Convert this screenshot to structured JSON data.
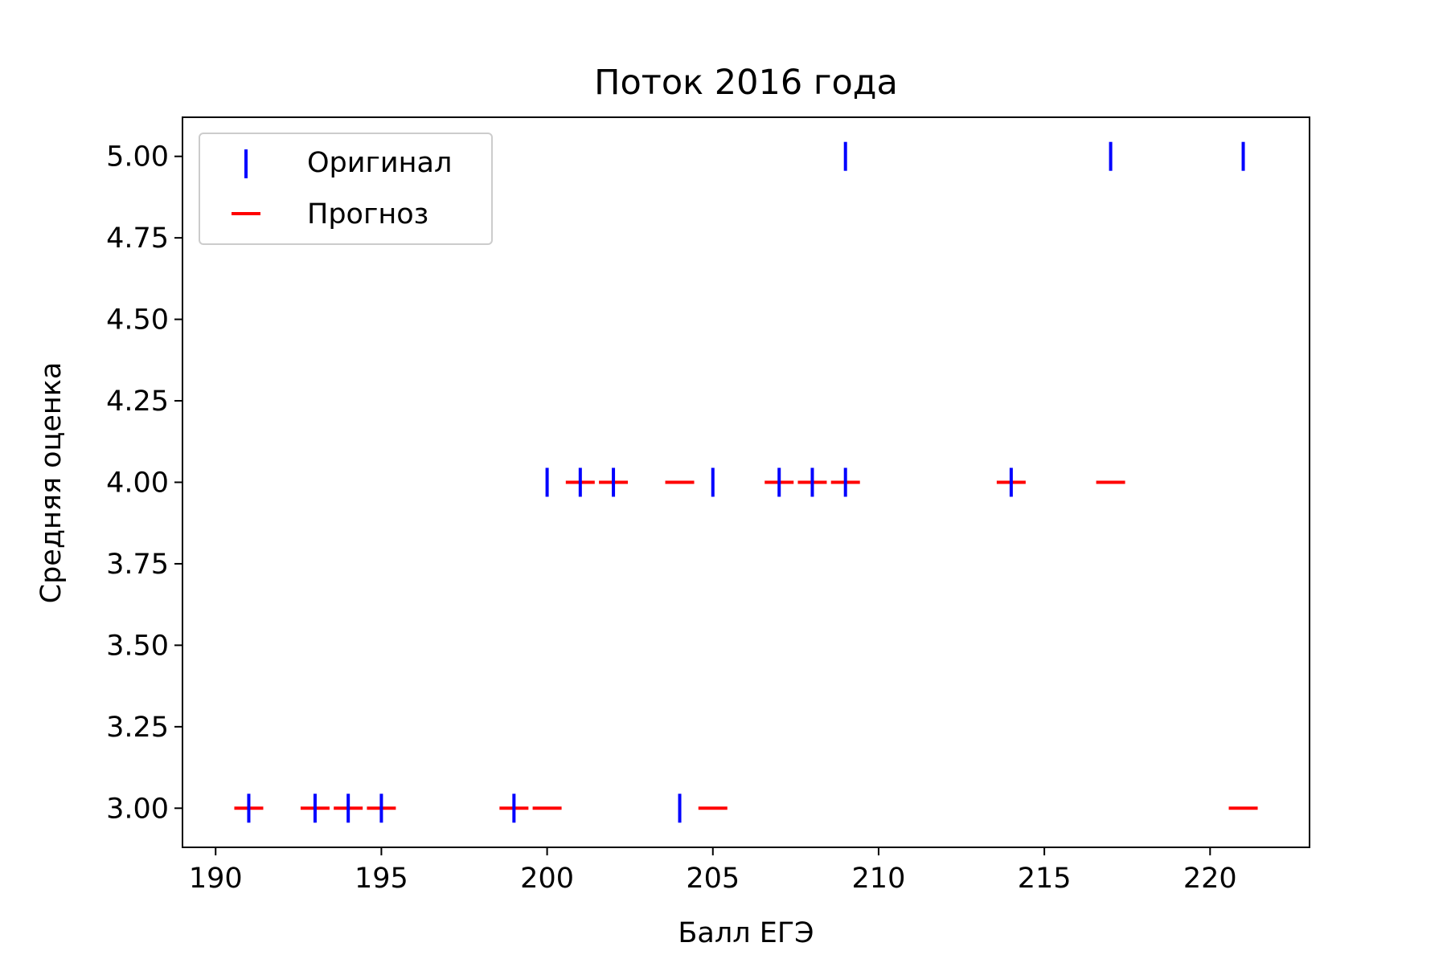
{
  "chart_data": {
    "type": "scatter",
    "title": "Поток 2016 года",
    "xlabel": "Балл ЕГЭ",
    "ylabel": "Средняя оценка",
    "xlim": [
      189,
      223
    ],
    "ylim": [
      2.88,
      5.12
    ],
    "xticks": [
      190,
      195,
      200,
      205,
      210,
      215,
      220
    ],
    "yticks": [
      3.0,
      3.25,
      3.5,
      3.75,
      4.0,
      4.25,
      4.5,
      4.75,
      5.0
    ],
    "xtick_labels": [
      "190",
      "195",
      "200",
      "205",
      "210",
      "215",
      "220"
    ],
    "ytick_labels": [
      "3.00",
      "3.25",
      "3.50",
      "3.75",
      "4.00",
      "4.25",
      "4.50",
      "4.75",
      "5.00"
    ],
    "grid": false,
    "legend_position": "top-left",
    "series": [
      {
        "name": "Оригинал",
        "marker": "vertical-line",
        "color": "#0000ff",
        "points": [
          {
            "x": 191,
            "y": 3
          },
          {
            "x": 193,
            "y": 3
          },
          {
            "x": 194,
            "y": 3
          },
          {
            "x": 195,
            "y": 3
          },
          {
            "x": 199,
            "y": 3
          },
          {
            "x": 204,
            "y": 3
          },
          {
            "x": 200,
            "y": 4
          },
          {
            "x": 201,
            "y": 4
          },
          {
            "x": 202,
            "y": 4
          },
          {
            "x": 205,
            "y": 4
          },
          {
            "x": 207,
            "y": 4
          },
          {
            "x": 208,
            "y": 4
          },
          {
            "x": 209,
            "y": 4
          },
          {
            "x": 214,
            "y": 4
          },
          {
            "x": 209,
            "y": 5
          },
          {
            "x": 217,
            "y": 5
          },
          {
            "x": 221,
            "y": 5
          }
        ]
      },
      {
        "name": "Прогноз",
        "marker": "horizontal-line",
        "color": "#ff0000",
        "points": [
          {
            "x": 191,
            "y": 3
          },
          {
            "x": 193,
            "y": 3
          },
          {
            "x": 194,
            "y": 3
          },
          {
            "x": 195,
            "y": 3
          },
          {
            "x": 199,
            "y": 3
          },
          {
            "x": 200,
            "y": 3
          },
          {
            "x": 205,
            "y": 3
          },
          {
            "x": 221,
            "y": 3
          },
          {
            "x": 201,
            "y": 4
          },
          {
            "x": 202,
            "y": 4
          },
          {
            "x": 204,
            "y": 4
          },
          {
            "x": 207,
            "y": 4
          },
          {
            "x": 208,
            "y": 4
          },
          {
            "x": 209,
            "y": 4
          },
          {
            "x": 214,
            "y": 4
          },
          {
            "x": 217,
            "y": 4
          }
        ]
      }
    ]
  }
}
